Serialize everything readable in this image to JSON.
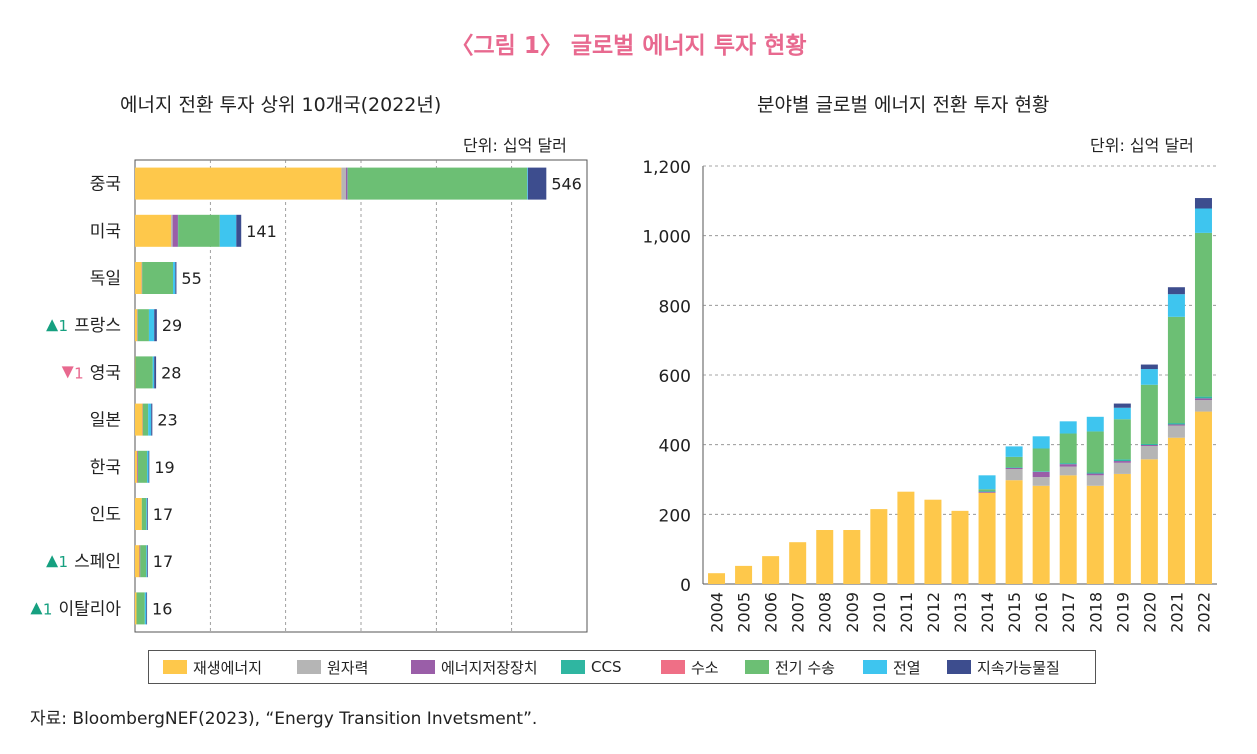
{
  "title": "〈그림 1〉 글로벌 에너지 투자 현황",
  "source": "자료: BloombergNEF(2023), “Energy Transition Invetsment”.",
  "colors": {
    "재생에너지": "#fec84b",
    "원자력": "#b5b5b5",
    "에너지저장장치": "#9a5ea8",
    "CCS": "#2fb6a1",
    "수소": "#ef6f86",
    "전기 수송": "#6cbf74",
    "전열": "#3ec5ef",
    "지속가능물질": "#3d4d8e",
    "up": "#16a080",
    "down": "#e8698f"
  },
  "legend": [
    "재생에너지",
    "원자력",
    "에너지저장장치",
    "CCS",
    "수소",
    "전기 수송",
    "전열",
    "지속가능물질"
  ],
  "chart_data": [
    {
      "type": "bar",
      "orientation": "horizontal",
      "stacked": true,
      "title": "에너지 전환 투자 상위 10개국(2022년)",
      "unit": "단위: 십억 달러",
      "xlim": [
        0,
        600
      ],
      "grid": true,
      "categories": [
        {
          "name": "중국",
          "rank_change": "",
          "arrow": ""
        },
        {
          "name": "미국",
          "rank_change": "",
          "arrow": ""
        },
        {
          "name": "독일",
          "rank_change": "",
          "arrow": ""
        },
        {
          "name": "프랑스",
          "rank_change": "1",
          "arrow": "up"
        },
        {
          "name": "영국",
          "rank_change": "1",
          "arrow": "down"
        },
        {
          "name": "일본",
          "rank_change": "",
          "arrow": ""
        },
        {
          "name": "한국",
          "rank_change": "",
          "arrow": ""
        },
        {
          "name": "인도",
          "rank_change": "",
          "arrow": ""
        },
        {
          "name": "스페인",
          "rank_change": "1",
          "arrow": "up"
        },
        {
          "name": "이탈리아",
          "rank_change": "1",
          "arrow": "up"
        }
      ],
      "totals": [
        546,
        141,
        55,
        29,
        28,
        23,
        19,
        17,
        17,
        16
      ],
      "series": [
        {
          "name": "재생에너지",
          "values": [
            274,
            48,
            9,
            3,
            0.5,
            10,
            3,
            9,
            6,
            2
          ]
        },
        {
          "name": "원자력",
          "values": [
            6,
            2,
            0,
            0,
            0,
            0,
            0,
            0,
            0,
            0
          ]
        },
        {
          "name": "에너지저장장치",
          "values": [
            2,
            7,
            0.5,
            0.5,
            0,
            0.5,
            1,
            0,
            1,
            0
          ]
        },
        {
          "name": "CCS",
          "values": [
            0.5,
            0.5,
            0,
            0,
            0,
            0,
            0,
            0,
            0,
            0
          ]
        },
        {
          "name": "수소",
          "values": [
            0,
            0,
            0,
            0,
            0,
            0,
            0,
            0,
            0,
            0
          ]
        },
        {
          "name": "전기 수송",
          "values": [
            238,
            55,
            41,
            15,
            23,
            7,
            12,
            6,
            8,
            11
          ]
        },
        {
          "name": "전열",
          "values": [
            1,
            22,
            3,
            7,
            2,
            4,
            2,
            1,
            1,
            2
          ]
        },
        {
          "name": "지속가능물질",
          "values": [
            24.5,
            6.5,
            1.5,
            3.5,
            2.5,
            1.5,
            1,
            1,
            1,
            1
          ]
        }
      ]
    },
    {
      "type": "bar",
      "stacked": true,
      "title": "분야별 글로벌 에너지 전환 투자 현황",
      "unit": "단위: 십억 달러",
      "ylim": [
        0,
        1200
      ],
      "yticks": [
        "0",
        "200",
        "400",
        "600",
        "800",
        "1,000",
        "1,200"
      ],
      "ytick_values": [
        0,
        200,
        400,
        600,
        800,
        1000,
        1200
      ],
      "grid": true,
      "categories": [
        "2004",
        "2005",
        "2006",
        "2007",
        "2008",
        "2009",
        "2010",
        "2011",
        "2012",
        "2013",
        "2014",
        "2015",
        "2016",
        "2017",
        "2018",
        "2019",
        "2020",
        "2021",
        "2022"
      ],
      "series": [
        {
          "name": "재생에너지",
          "values": [
            31,
            52,
            80,
            120,
            155,
            155,
            215,
            265,
            242,
            210,
            262,
            298,
            282,
            312,
            282,
            316,
            358,
            420,
            495
          ]
        },
        {
          "name": "원자력",
          "values": [
            0,
            0,
            0,
            0,
            0,
            0,
            0,
            0,
            0,
            0,
            0,
            32,
            25,
            25,
            30,
            32,
            38,
            35,
            33
          ]
        },
        {
          "name": "에너지저장장치",
          "values": [
            0,
            0,
            0,
            0,
            0,
            0,
            0,
            0,
            0,
            0,
            3,
            3,
            15,
            7,
            5,
            5,
            3,
            3,
            5
          ]
        },
        {
          "name": "CCS",
          "values": [
            0,
            0,
            0,
            0,
            0,
            0,
            0,
            0,
            0,
            0,
            2,
            2,
            2,
            3,
            3,
            5,
            3,
            4,
            5
          ]
        },
        {
          "name": "수소",
          "values": [
            0,
            0,
            0,
            0,
            0,
            0,
            0,
            0,
            0,
            0,
            0,
            0,
            0,
            0,
            0,
            0,
            0,
            0,
            0
          ]
        },
        {
          "name": "전기 수송",
          "values": [
            0,
            0,
            0,
            0,
            0,
            0,
            0,
            0,
            0,
            0,
            5,
            30,
            65,
            85,
            118,
            115,
            170,
            305,
            470
          ]
        },
        {
          "name": "전열",
          "values": [
            0,
            0,
            0,
            0,
            0,
            0,
            0,
            0,
            0,
            0,
            40,
            30,
            35,
            35,
            42,
            33,
            45,
            65,
            70
          ]
        },
        {
          "name": "지속가능물질",
          "values": [
            0,
            0,
            0,
            0,
            0,
            0,
            0,
            0,
            0,
            0,
            0,
            0,
            0,
            0,
            0,
            12,
            13,
            20,
            30
          ]
        }
      ]
    }
  ]
}
